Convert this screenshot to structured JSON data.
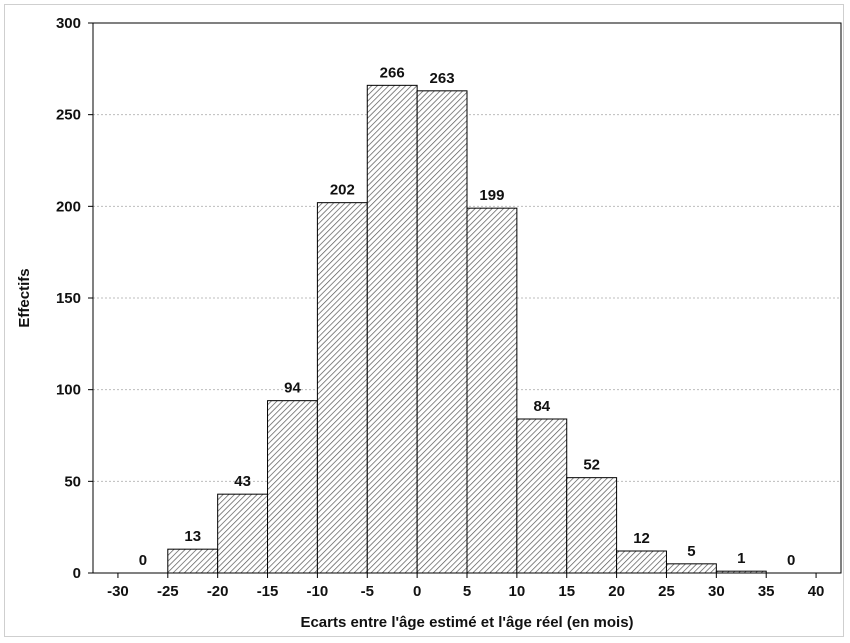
{
  "chart_data": {
    "type": "bar",
    "title": "",
    "xlabel": "Ecarts entre l'âge estimé et l'âge réel (en mois)",
    "ylabel": "Effectifs",
    "bin_edges": [
      -30,
      -25,
      -20,
      -15,
      -10,
      -5,
      0,
      5,
      10,
      15,
      20,
      25,
      30,
      35,
      40
    ],
    "values": [
      0,
      13,
      43,
      94,
      202,
      266,
      263,
      199,
      84,
      52,
      12,
      5,
      1,
      0
    ],
    "x_ticks": [
      "-30",
      "-25",
      "-20",
      "-15",
      "-10",
      "-5",
      "0",
      "5",
      "10",
      "15",
      "20",
      "25",
      "30",
      "35",
      "40"
    ],
    "y_ticks": [
      "0",
      "50",
      "100",
      "150",
      "200",
      "250",
      "300"
    ],
    "xlim": [
      -32.5,
      42.5
    ],
    "ylim": [
      0,
      300
    ],
    "grid": "horizontal dotted",
    "bar_fill": "hatched",
    "colors": {
      "bar_fill": "#ffffff",
      "hatch": "#555555",
      "bar_edge": "#000000",
      "grid": "#bdbdbd"
    }
  }
}
